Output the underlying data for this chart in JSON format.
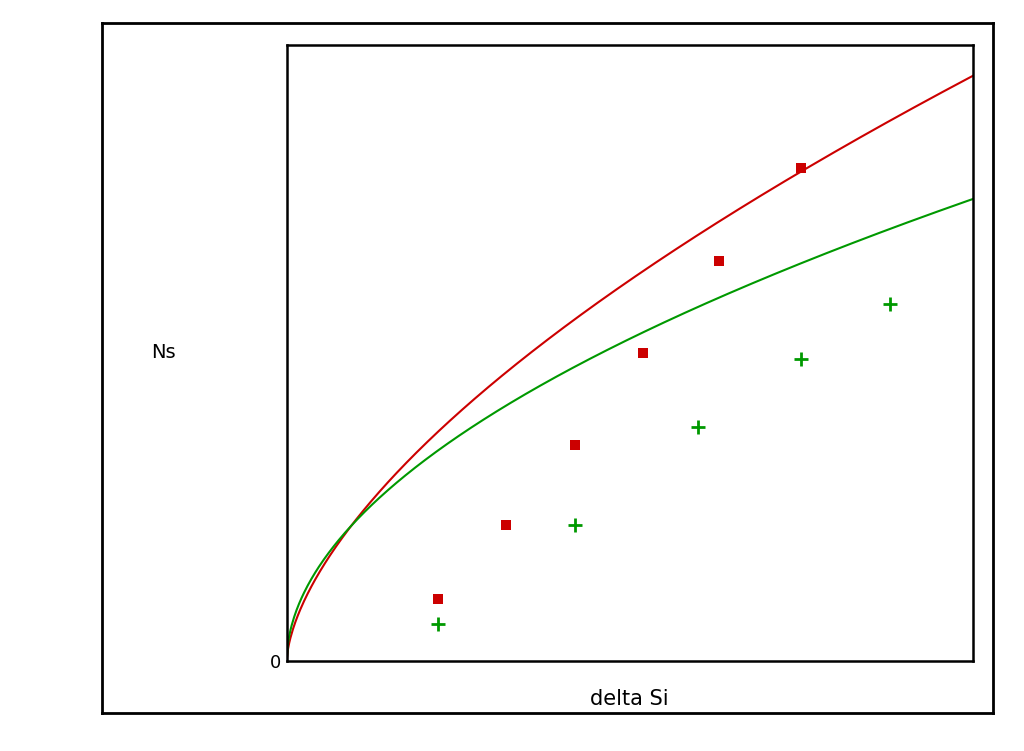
{
  "title": "",
  "xlabel": "delta Si",
  "ylabel": "Ns",
  "ylabel_rotation": 0,
  "background_color": "#ffffff",
  "red_curve_color": "#cc0000",
  "green_curve_color": "#009900",
  "red_marker_color": "#cc0000",
  "green_marker_color": "#009900",
  "xlim": [
    0,
    1.0
  ],
  "ylim": [
    0,
    1.0
  ],
  "red_data_x": [
    0.22,
    0.32,
    0.42,
    0.52,
    0.63,
    0.75
  ],
  "red_data_y": [
    0.1,
    0.22,
    0.35,
    0.5,
    0.65,
    0.8
  ],
  "green_data_x": [
    0.22,
    0.42,
    0.6,
    0.75,
    0.88
  ],
  "green_data_y": [
    0.06,
    0.22,
    0.38,
    0.49,
    0.58
  ],
  "red_a": 0.95,
  "red_n": 0.62,
  "green_a": 0.75,
  "green_n": 0.52
}
